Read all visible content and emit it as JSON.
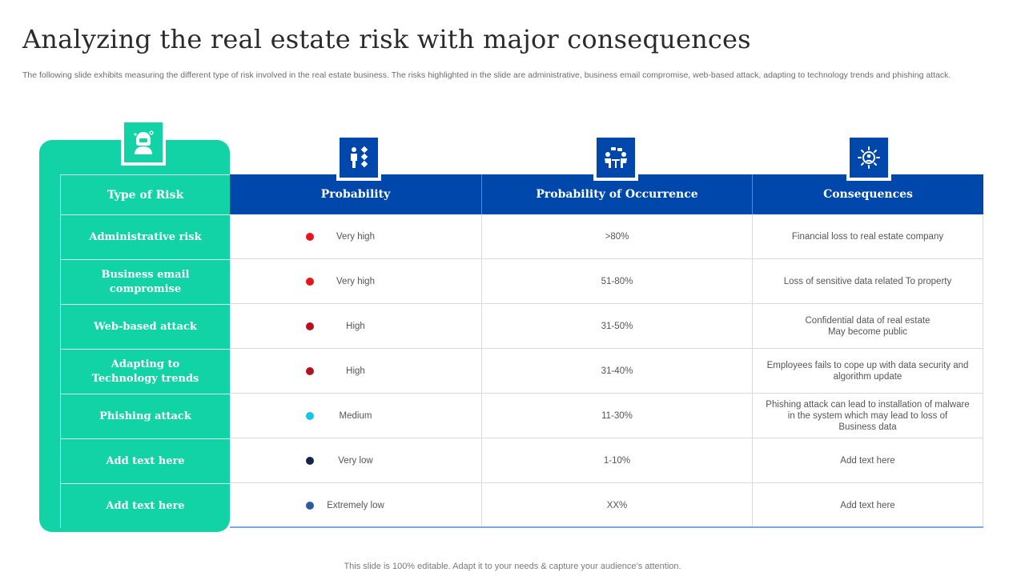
{
  "title": "Analyzing the real estate risk with major consequences",
  "subtitle": "The following slide exhibits measuring the different type of risk involved in the real estate business. The risks highlighted in the slide are administrative, business email compromise, web-based attack, adapting to technology trends and phishing attack.",
  "colors": {
    "teal": "#12d3a6",
    "blue": "#0047ab",
    "very_high": "#e8141c",
    "high": "#b3121b",
    "medium": "#18c2ea",
    "very_low": "#15244a",
    "extremely_low": "#2c5a9e"
  },
  "icons": {
    "type_of_risk": "hacker-icon",
    "probability": "person-dice-icon",
    "occurrence": "meeting-icon",
    "consequences": "gear-person-icon"
  },
  "table": {
    "headers": {
      "type_of_risk": "Type of Risk",
      "probability": "Probability",
      "occurrence": "Probability  of Occurrence",
      "consequences": "Consequences"
    },
    "rows": [
      {
        "risk": "Administrative risk",
        "probability": "Very high",
        "level": "very_high",
        "occurrence": ">80%",
        "consequence": "Financial loss to real estate company"
      },
      {
        "risk": "Business email compromise",
        "probability": "Very high",
        "level": "very_high",
        "occurrence": "51-80%",
        "consequence": "Loss of sensitive data related To property"
      },
      {
        "risk": "Web-based attack",
        "probability": "High",
        "level": "high",
        "occurrence": "31-50%",
        "consequence": "Confidential data of real estate\nMay become public"
      },
      {
        "risk": "Adapting to\nTechnology trends",
        "probability": "High",
        "level": "high",
        "occurrence": "31-40%",
        "consequence": "Employees fails to cope up with data security and\nalgorithm update"
      },
      {
        "risk": "Phishing attack",
        "probability": "Medium",
        "level": "medium",
        "occurrence": "11-30%",
        "consequence": "Phishing attack can lead to installation of malware\nin the system which may lead to loss of\nBusiness data"
      },
      {
        "risk": "Add text here",
        "probability": "Very low",
        "level": "very_low",
        "occurrence": "1-10%",
        "consequence": "Add text here"
      },
      {
        "risk": "Add text here",
        "probability": "Extremely low",
        "level": "extremely_low",
        "occurrence": "XX%",
        "consequence": "Add text here"
      }
    ]
  },
  "footer": "This slide is 100% editable. Adapt it to your needs & capture your audience’s attention."
}
